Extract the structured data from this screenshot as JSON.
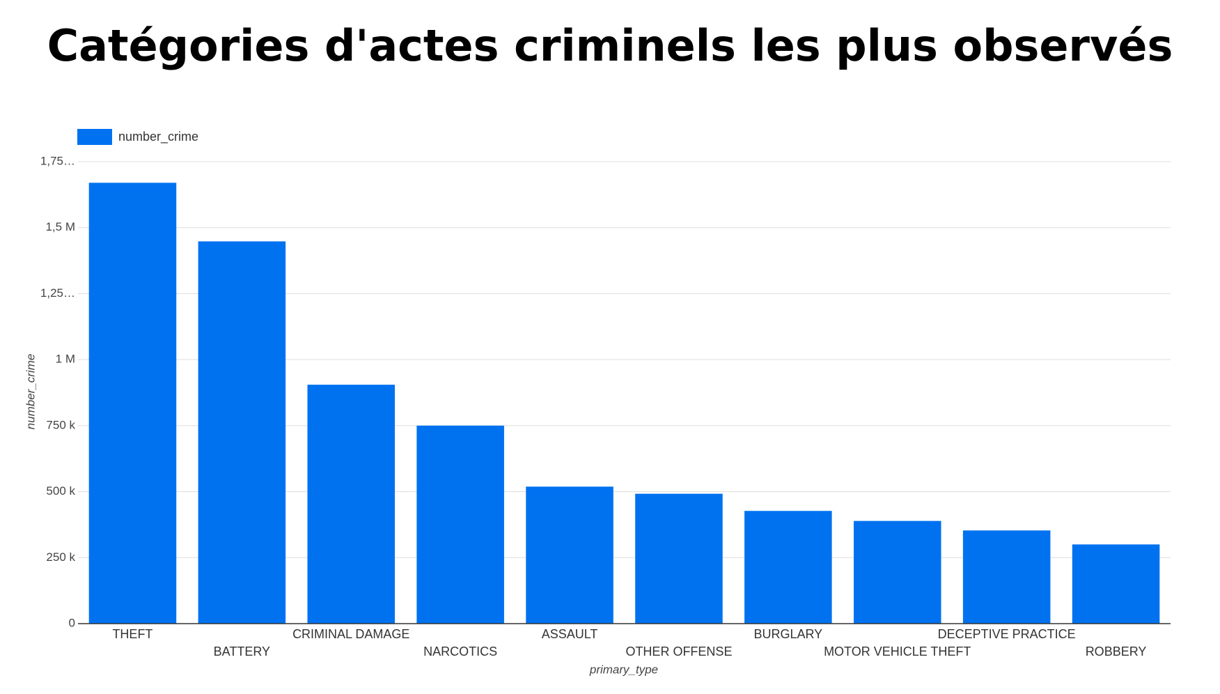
{
  "chart_data": {
    "type": "bar",
    "title": "Catégories d'actes criminels les plus observés",
    "x_label": "primary_type",
    "y_label": "number_crime",
    "categories": [
      "THEFT",
      "BATTERY",
      "CRIMINAL DAMAGE",
      "NARCOTICS",
      "ASSAULT",
      "OTHER OFFENSE",
      "BURGLARY",
      "MOTOR VEHICLE THEFT",
      "DECEPTIVE PRACTICE",
      "ROBBERY"
    ],
    "series": [
      {
        "name": "number_crime",
        "color": "#0072f0",
        "values": [
          1670000,
          1448000,
          905000,
          750000,
          519000,
          492000,
          427000,
          389000,
          353000,
          300000
        ]
      }
    ],
    "ylim": [
      0,
      1750000
    ],
    "yticks": [
      0,
      {
        "value": 250000,
        "label": "250 k"
      },
      {
        "value": 500000,
        "label": "500 k"
      },
      {
        "value": 750000,
        "label": "750 k"
      },
      {
        "value": 1000000,
        "label": "1 M"
      },
      {
        "value": 1250000,
        "label": "1,25…"
      },
      {
        "value": 1500000,
        "label": "1,5 M"
      },
      {
        "value": 1750000,
        "label": "1,75…"
      }
    ],
    "grid": true,
    "legend": "top-left"
  }
}
